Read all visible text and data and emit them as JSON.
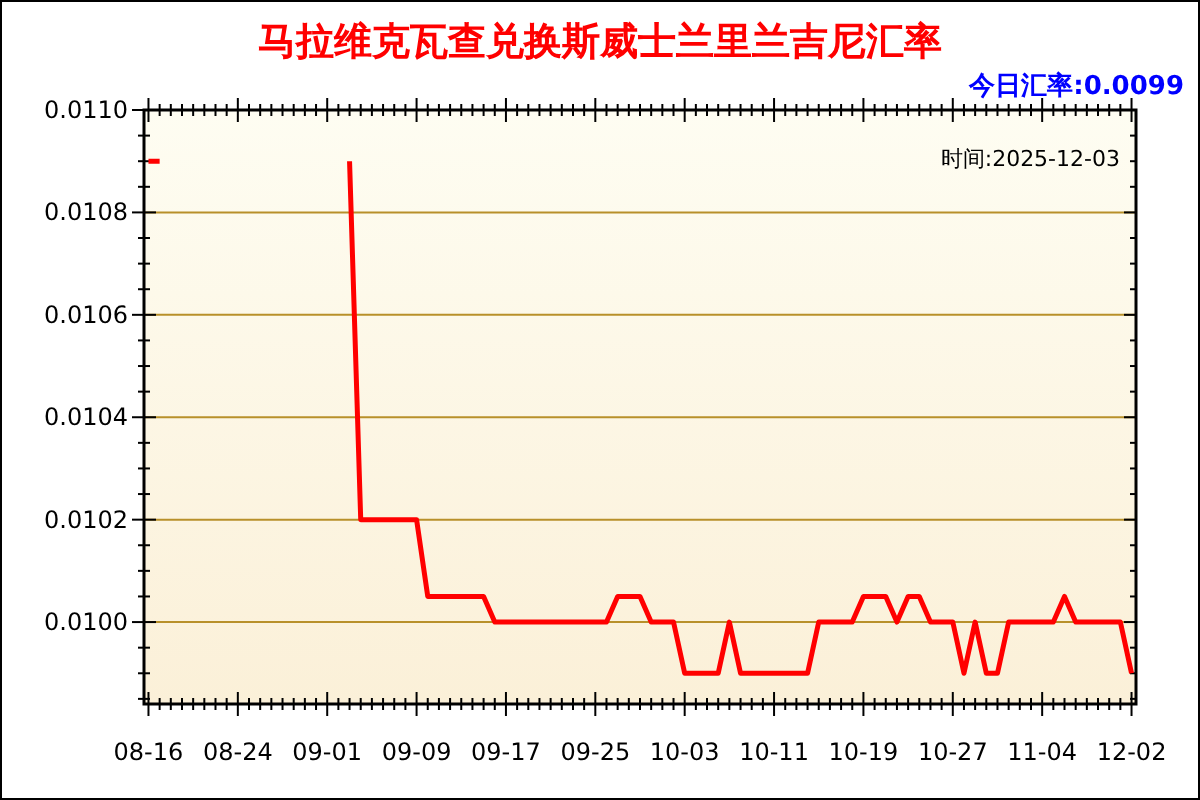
{
  "chart_data": {
    "type": "line",
    "title": "马拉维克瓦查兑换斯威士兰里兰吉尼汇率",
    "annotations": [
      "今日汇率:0.0099",
      "时间:2025-12-03"
    ],
    "categories": [
      "08-16",
      null,
      null,
      null,
      null,
      null,
      null,
      null,
      "08-24",
      null,
      null,
      null,
      null,
      null,
      null,
      null,
      "09-01",
      null,
      null,
      null,
      null,
      null,
      null,
      null,
      "09-09",
      null,
      null,
      null,
      null,
      null,
      null,
      null,
      "09-17",
      null,
      null,
      null,
      null,
      null,
      null,
      null,
      "09-25",
      null,
      null,
      null,
      null,
      null,
      null,
      null,
      "10-03",
      null,
      null,
      null,
      null,
      null,
      null,
      null,
      "10-11",
      null,
      null,
      null,
      null,
      null,
      null,
      null,
      "10-19",
      null,
      null,
      null,
      null,
      null,
      null,
      null,
      "10-27",
      null,
      null,
      null,
      null,
      null,
      null,
      null,
      "11-04",
      null,
      null,
      null,
      null,
      null,
      null,
      null,
      "12-02"
    ],
    "series": [
      {
        "color": "#ff0000",
        "values": [
          0.0109,
          0.0109,
          null,
          null,
          null,
          null,
          null,
          null,
          null,
          null,
          null,
          null,
          null,
          null,
          null,
          null,
          null,
          null,
          0.0109,
          0.0102,
          0.0102,
          0.0102,
          0.0102,
          0.0102,
          0.0102,
          0.01005,
          0.01005,
          0.01005,
          0.01005,
          0.01005,
          0.01005,
          0.01,
          0.01,
          0.01,
          0.01,
          0.01,
          0.01,
          0.01,
          0.01,
          0.01,
          0.01,
          0.01,
          0.01005,
          0.01005,
          0.01005,
          0.01,
          0.01,
          0.01,
          0.0099,
          0.0099,
          0.0099,
          0.0099,
          0.01,
          0.0099,
          0.0099,
          0.0099,
          0.0099,
          0.0099,
          0.0099,
          0.0099,
          0.01,
          0.01,
          0.01,
          0.01,
          0.01005,
          0.01005,
          0.01005,
          0.01,
          0.01005,
          0.01005,
          0.01,
          0.01,
          0.01,
          0.0099,
          0.01,
          0.0099,
          0.0099,
          0.01,
          0.01,
          0.01,
          0.01,
          0.01,
          0.01005,
          0.01,
          0.01,
          0.01,
          0.01,
          0.01,
          0.0099
        ]
      }
    ],
    "ylim": [
      0.00984,
      0.011
    ],
    "yticks": [
      {
        "value": 0.00985,
        "label": null
      },
      {
        "value": 0.0099,
        "label": null
      },
      {
        "value": 0.00995,
        "label": null
      },
      {
        "value": 0.01,
        "label": "0.0100"
      },
      {
        "value": 0.01005,
        "label": null
      },
      {
        "value": 0.0101,
        "label": null
      },
      {
        "value": 0.01015,
        "label": null
      },
      {
        "value": 0.0102,
        "label": "0.0102"
      },
      {
        "value": 0.01025,
        "label": null
      },
      {
        "value": 0.0103,
        "label": null
      },
      {
        "value": 0.01035,
        "label": null
      },
      {
        "value": 0.0104,
        "label": "0.0104"
      },
      {
        "value": 0.01045,
        "label": null
      },
      {
        "value": 0.0105,
        "label": null
      },
      {
        "value": 0.01055,
        "label": null
      },
      {
        "value": 0.0106,
        "label": "0.0106"
      },
      {
        "value": 0.01065,
        "label": null
      },
      {
        "value": 0.0107,
        "label": null
      },
      {
        "value": 0.01075,
        "label": null
      },
      {
        "value": 0.0108,
        "label": "0.0108"
      },
      {
        "value": 0.01085,
        "label": null
      },
      {
        "value": 0.0109,
        "label": null
      },
      {
        "value": 0.01095,
        "label": null
      },
      {
        "value": 0.011,
        "label": "0.0110"
      }
    ],
    "grid": "y",
    "marker": "none",
    "line_style": "solid"
  }
}
